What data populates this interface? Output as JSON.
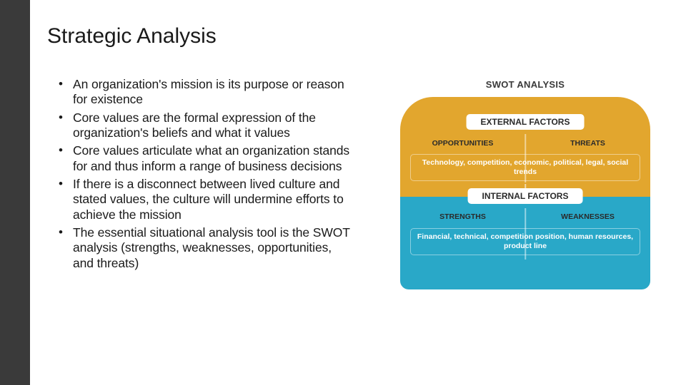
{
  "slide": {
    "title": "Strategic Analysis",
    "bullets": [
      "An organization's mission is its purpose or reason for existence",
      "Core values are the formal expression of the organization's beliefs and what it values",
      "Core values articulate what an organization stands for and thus inform a range of business decisions",
      "If there is a disconnect between lived culture and stated values, the culture will undermine efforts to achieve the mission",
      "The essential situational analysis tool is the SWOT analysis (strengths, weaknesses, opportunities, and threats)"
    ]
  },
  "colors": {
    "sidebar": "#3a3a3a",
    "background": "#ffffff",
    "text": "#1a1a1a",
    "external_block": "#e2a62e",
    "internal_block": "#29a8c8",
    "label_bg": "#ffffff"
  },
  "swot": {
    "title": "SWOT ANALYSIS",
    "external": {
      "header": "EXTERNAL FACTORS",
      "left_label": "OPPORTUNITIES",
      "right_label": "THREATS",
      "description": "Technology, competition, economic, political, legal, social trends"
    },
    "internal": {
      "header": "INTERNAL FACTORS",
      "left_label": "STRENGTHS",
      "right_label": "WEAKNESSES",
      "description": "Financial, technical, competition position, human resources, product line"
    }
  }
}
